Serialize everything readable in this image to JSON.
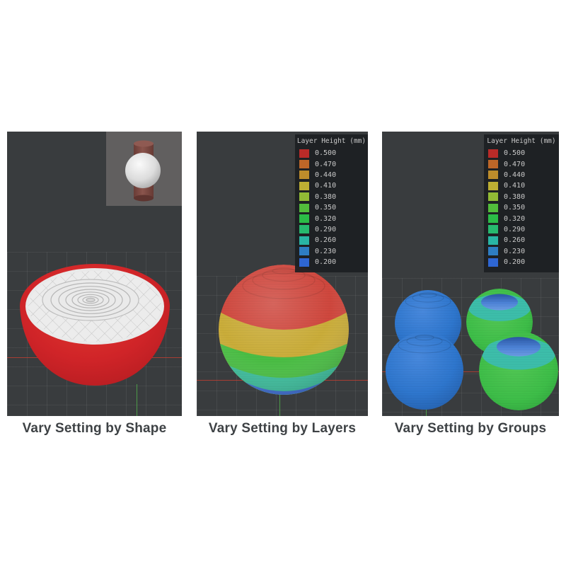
{
  "figure": {
    "panels": [
      {
        "id": "by-shape",
        "caption": "Vary Setting by Shape"
      },
      {
        "id": "by-layers",
        "caption": "Vary Setting by Layers"
      },
      {
        "id": "by-groups",
        "caption": "Vary Setting by Groups"
      }
    ],
    "legend": {
      "title": "Layer Height (mm)",
      "entries": [
        {
          "value": "0.500",
          "color": "#b92b28"
        },
        {
          "value": "0.470",
          "color": "#bd6628"
        },
        {
          "value": "0.440",
          "color": "#bd8c2b"
        },
        {
          "value": "0.410",
          "color": "#bcae33"
        },
        {
          "value": "0.380",
          "color": "#92bb35"
        },
        {
          "value": "0.350",
          "color": "#52bd3b"
        },
        {
          "value": "0.320",
          "color": "#2bbc47"
        },
        {
          "value": "0.290",
          "color": "#27b96e"
        },
        {
          "value": "0.260",
          "color": "#29b5a4"
        },
        {
          "value": "0.230",
          "color": "#2e7dc3"
        },
        {
          "value": "0.200",
          "color": "#2e66d3"
        }
      ]
    },
    "scene_colors": {
      "viewport_background": "#393c3e",
      "bowl_red": "#d02428",
      "infill_white": "#ececec",
      "band_red": "#d4493f",
      "band_gold": "#cfb13b",
      "band_green": "#4cc246",
      "band_teal": "#3ec2a0",
      "band_blue": "#3f6fd6",
      "sphere_blue": "#2f79d2",
      "sphere_green": "#3fc24a",
      "teal_shoulder": "#3ec2ae",
      "crater_blue": "#4b82d8",
      "modifier_brown": "#7d4b44",
      "thumbnail_background": "#615f5f"
    }
  }
}
